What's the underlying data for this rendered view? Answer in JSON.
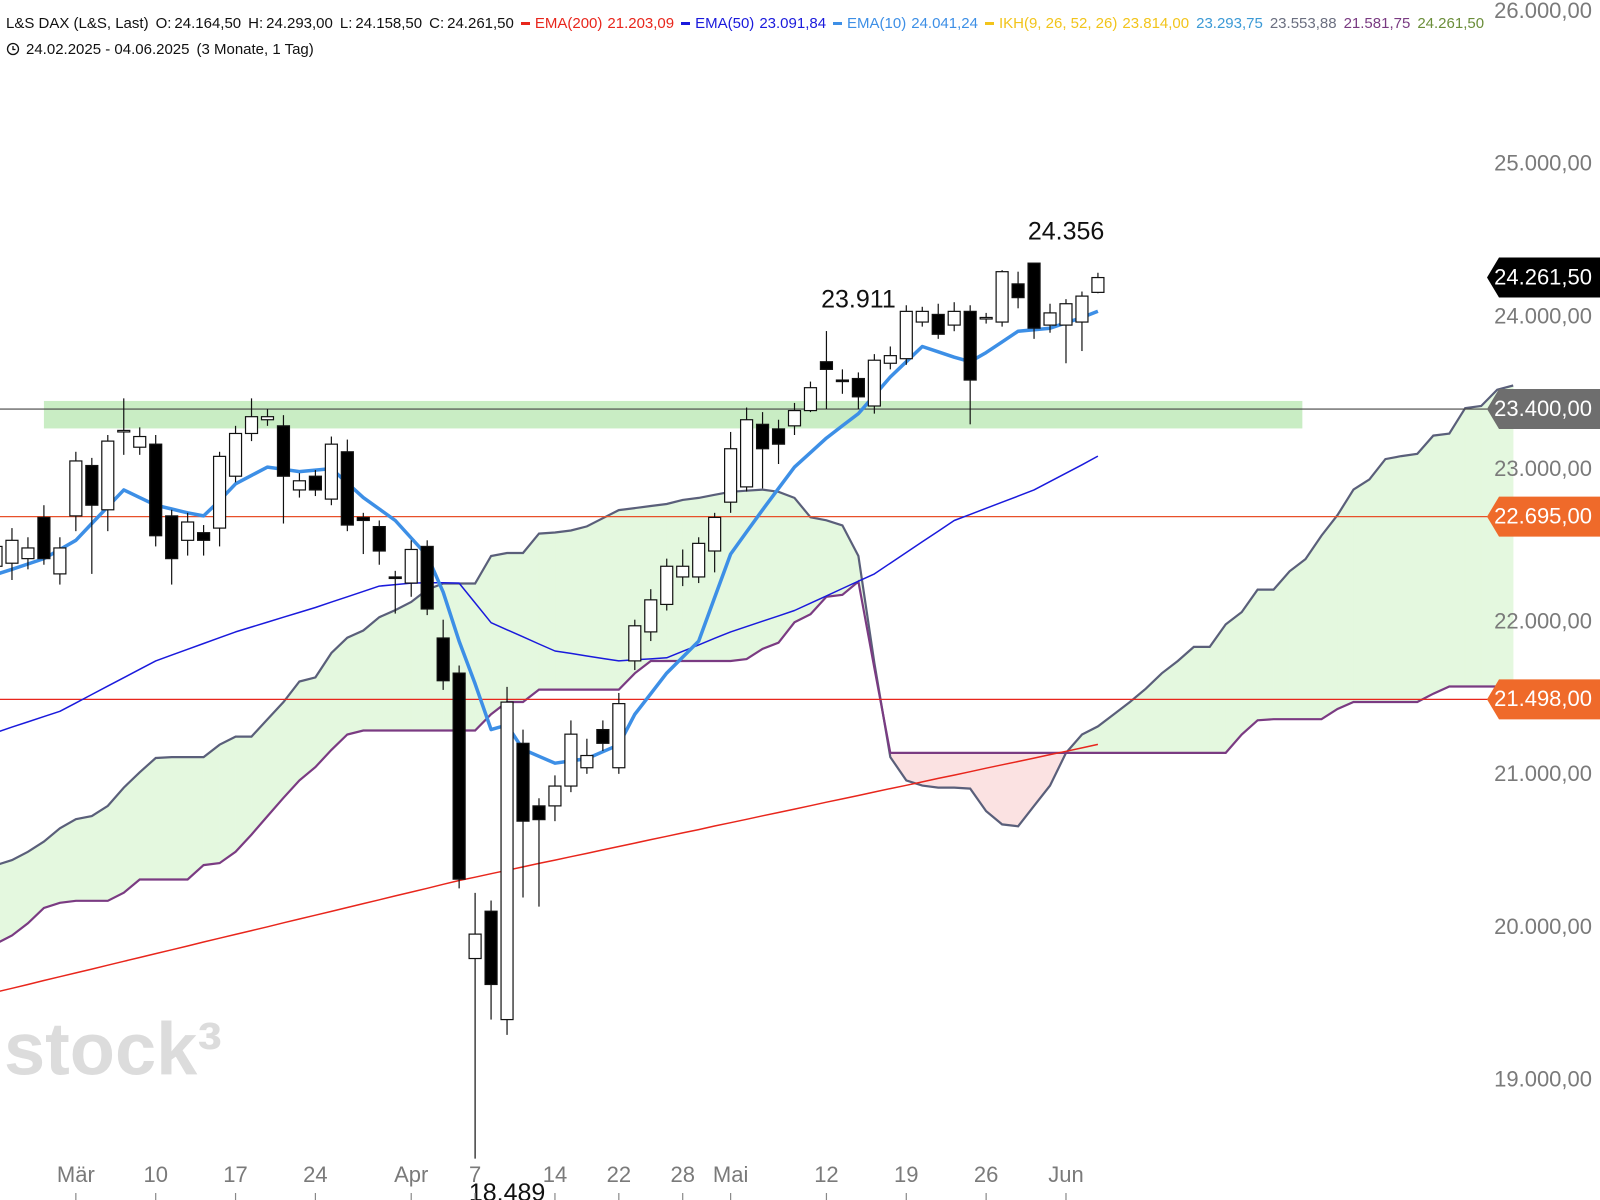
{
  "chart_data": {
    "type": "candlestick",
    "symbol": "L&S DAX (L&S, Last)",
    "ohlc": [
      {
        "label": "O:",
        "text": "24.164,50"
      },
      {
        "label": "H:",
        "text": "24.293,00"
      },
      {
        "label": "L:",
        "text": "24.158,50"
      },
      {
        "label": "C:",
        "text": "24.261,50"
      }
    ],
    "range": "24.02.2025 - 04.06.2025",
    "period": "(3 Monate, 1 Tag)",
    "watermark": "stock³",
    "categories": [
      null,
      null,
      null,
      null,
      null,
      "Mär",
      null,
      null,
      null,
      null,
      "10",
      null,
      null,
      null,
      null,
      "17",
      null,
      null,
      null,
      null,
      "24",
      null,
      null,
      null,
      null,
      null,
      "Apr",
      null,
      null,
      null,
      "7",
      null,
      null,
      null,
      null,
      "14",
      null,
      null,
      null,
      "22",
      null,
      null,
      null,
      "28",
      null,
      null,
      "Mai",
      null,
      null,
      null,
      null,
      null,
      "12",
      null,
      null,
      null,
      null,
      "19",
      null,
      null,
      null,
      null,
      "26",
      null,
      null,
      null,
      null,
      "Jun",
      null,
      null,
      null,
      null,
      null,
      null,
      null,
      null,
      null,
      null,
      null,
      null,
      null,
      null,
      null,
      null,
      null,
      null,
      null,
      null,
      null,
      null,
      null,
      null,
      null,
      null,
      null,
      null
    ],
    "open": [
      22370,
      22390,
      22420,
      22690,
      22320,
      22700,
      23030,
      22740,
      23250,
      23150,
      23170,
      22700,
      22540,
      22590,
      22620,
      22960,
      23240,
      23330,
      23290,
      22870,
      22960,
      22810,
      23120,
      22690,
      22630,
      22300,
      22260,
      22500,
      21900,
      21670,
      19800,
      20110,
      19400,
      21210,
      20800,
      20800,
      20930,
      21050,
      21300,
      21050,
      21750,
      21940,
      22120,
      22300,
      22300,
      22470,
      22790,
      22890,
      23300,
      23270,
      23290,
      23390,
      23710,
      23590,
      23600,
      23420,
      23700,
      23730,
      23970,
      24020,
      23950,
      24040,
      23990,
      23970,
      24220,
      24356,
      23950,
      23950,
      23970,
      24164.5,
      null,
      null,
      null,
      null,
      null,
      null,
      null,
      null,
      null,
      null,
      null,
      null,
      null,
      null,
      null,
      null,
      null,
      null,
      null,
      null,
      null,
      null,
      null,
      null,
      null,
      null
    ],
    "high": [
      22560,
      22620,
      22560,
      22770,
      22560,
      23120,
      23080,
      23230,
      23470,
      23280,
      23230,
      22740,
      22720,
      22640,
      23120,
      23290,
      23470,
      23400,
      23360,
      22980,
      23000,
      23220,
      23200,
      22720,
      22670,
      22340,
      22540,
      22540,
      22020,
      21720,
      20230,
      20180,
      21580,
      21300,
      20850,
      21000,
      21360,
      21240,
      21360,
      21540,
      22020,
      22220,
      22420,
      22480,
      22560,
      22720,
      23250,
      23410,
      23380,
      23330,
      23440,
      23580,
      23911,
      23660,
      23640,
      23760,
      23810,
      24080,
      24070,
      24090,
      24100,
      24080,
      24030,
      24310,
      24300,
      24356,
      24090,
      24120,
      24170,
      24293,
      null,
      null,
      null,
      null,
      null,
      null,
      null,
      null,
      null,
      null,
      null,
      null,
      null,
      null,
      null,
      null,
      null,
      null,
      null,
      null,
      null,
      null,
      null,
      null,
      null,
      null
    ],
    "low": [
      22300,
      22280,
      22350,
      22380,
      22250,
      22600,
      22320,
      22600,
      23100,
      23100,
      22500,
      22250,
      22440,
      22440,
      22500,
      22920,
      23190,
      23290,
      22650,
      22820,
      22830,
      22770,
      22600,
      22450,
      22380,
      22060,
      22170,
      22050,
      21560,
      20260,
      18489,
      19400,
      19300,
      20200,
      20140,
      20700,
      20890,
      21010,
      21160,
      21010,
      21690,
      21880,
      22080,
      22240,
      22260,
      22330,
      22720,
      22860,
      22880,
      23040,
      23230,
      23380,
      23400,
      23500,
      23400,
      23370,
      23660,
      23690,
      23940,
      23860,
      23910,
      23300,
      23960,
      23940,
      24060,
      23860,
      23900,
      23700,
      23780,
      24158.5,
      null,
      null,
      null,
      null,
      null,
      null,
      null,
      null,
      null,
      null,
      null,
      null,
      null,
      null,
      null,
      null,
      null,
      null,
      null,
      null,
      null,
      null,
      null,
      null,
      null,
      null
    ],
    "close": [
      22500,
      22540,
      22490,
      22420,
      22490,
      23060,
      22770,
      23190,
      23260,
      23220,
      22570,
      22420,
      22660,
      22540,
      23090,
      23240,
      23350,
      23350,
      22960,
      22930,
      22870,
      23170,
      22640,
      22670,
      22470,
      22290,
      22480,
      22090,
      21620,
      20320,
      19960,
      19630,
      21480,
      20700,
      20710,
      20930,
      21270,
      21130,
      21210,
      21470,
      21980,
      22150,
      22370,
      22370,
      22520,
      22690,
      23140,
      23330,
      23140,
      23170,
      23390,
      23540,
      23660,
      23580,
      23480,
      23720,
      23750,
      24040,
      24040,
      23890,
      24040,
      23590,
      24000,
      24300,
      24130,
      23930,
      24030,
      24090,
      24140,
      24261.5,
      null,
      null,
      null,
      null,
      null,
      null,
      null,
      null,
      null,
      null,
      null,
      null,
      null,
      null,
      null,
      null,
      null,
      null,
      null,
      null,
      null,
      null,
      null,
      null,
      null,
      null
    ],
    "series": [
      {
        "name": "EMA(200)",
        "color": "#e8261c",
        "width": 1.5,
        "legend_value": "21.203,09",
        "values": [
          19580,
          19605,
          19630,
          19656,
          19681,
          19706,
          19731,
          19756,
          19782,
          19807,
          19832,
          19857,
          19882,
          19908,
          19933,
          19958,
          19983,
          20008,
          20034,
          20059,
          20084,
          20109,
          20134,
          20160,
          20185,
          20210,
          20235,
          20260,
          20286,
          20311,
          20333,
          20356,
          20378,
          20400,
          20423,
          20445,
          20467,
          20489,
          20512,
          20534,
          20556,
          20579,
          20601,
          20623,
          20645,
          20668,
          20690,
          20712,
          20735,
          20757,
          20779,
          20801,
          20824,
          20846,
          20868,
          20891,
          20913,
          20935,
          20957,
          20980,
          21002,
          21024,
          21047,
          21069,
          21091,
          21113,
          21136,
          21158,
          21180,
          21203,
          null,
          null,
          null,
          null,
          null,
          null,
          null,
          null,
          null,
          null,
          null,
          null,
          null,
          null,
          null,
          null,
          null,
          null,
          null,
          null,
          null,
          null,
          null,
          null,
          null,
          null
        ]
      },
      {
        "name": "EMA(50)",
        "color": "#1a1adc",
        "width": 1.5,
        "legend_value": "23.091,84",
        "values": [
          21281,
          21316,
          21350,
          21385,
          21420,
          21475,
          21530,
          21585,
          21640,
          21695,
          21750,
          21788,
          21826,
          21864,
          21902,
          21940,
          21972,
          22004,
          22036,
          22068,
          22100,
          22135,
          22170,
          22205,
          22240,
          22250,
          22260,
          22262,
          22262,
          22260,
          22130,
          22000,
          21954,
          21908,
          21861,
          21815,
          21799,
          21782,
          21766,
          21750,
          21757,
          21763,
          21770,
          21813,
          21855,
          21898,
          21940,
          21975,
          22010,
          22045,
          22080,
          22128,
          22176,
          22224,
          22272,
          22320,
          22390,
          22460,
          22530,
          22600,
          22670,
          22710,
          22750,
          22790,
          22830,
          22870,
          22925,
          22980,
          23035,
          23092,
          null,
          null,
          null,
          null,
          null,
          null,
          null,
          null,
          null,
          null,
          null,
          null,
          null,
          null,
          null,
          null,
          null,
          null,
          null,
          null,
          null,
          null,
          null,
          null,
          null,
          null
        ]
      },
      {
        "name": "EMA(10)",
        "color": "#3d8fe6",
        "width": 3.5,
        "legend_value": "24.041,24",
        "values": [
          22317,
          22350,
          22385,
          22420,
          22480,
          22540,
          22650,
          22760,
          22870,
          22820,
          22770,
          22745,
          22720,
          22700,
          22800,
          22910,
          22965,
          23020,
          23005,
          22990,
          23000,
          23010,
          22915,
          22820,
          22745,
          22670,
          22555,
          22440,
          22200,
          21880,
          21600,
          21300,
          21330,
          21170,
          21125,
          21080,
          21095,
          21110,
          21155,
          21200,
          21400,
          21535,
          21670,
          21775,
          21880,
          22165,
          22450,
          22595,
          22740,
          22880,
          23020,
          23115,
          23210,
          23290,
          23370,
          23490,
          23610,
          23710,
          23810,
          23775,
          23740,
          23710,
          23770,
          23840,
          23910,
          23920,
          23930,
          23965,
          24000,
          24041,
          null,
          null,
          null,
          null,
          null,
          null,
          null,
          null,
          null,
          null,
          null,
          null,
          null,
          null,
          null,
          null,
          null,
          null,
          null,
          null,
          null,
          null,
          null,
          null,
          null,
          null
        ]
      }
    ],
    "ikh": {
      "name": "IKH(9, 26, 52, 26)",
      "color": "#f2c41b",
      "readouts": [
        {
          "text": "23.814,00",
          "color": "#f2c41b"
        },
        {
          "text": "23.293,75",
          "color": "#3c9ad6"
        },
        {
          "text": "23.553,88",
          "color": "#6b6f80"
        },
        {
          "text": "21.581,75",
          "color": "#7a3b82"
        },
        {
          "text": "24.261,50",
          "color": "#6b8e3a"
        }
      ]
    },
    "cloud": {
      "span_a": {
        "color": "#5a5f7a",
        "values": [
          20412,
          20445,
          20499,
          20566,
          20653,
          20713,
          20733,
          20800,
          20920,
          21020,
          21114,
          21120,
          21120,
          21120,
          21201,
          21254,
          21254,
          21368,
          21481,
          21615,
          21642,
          21802,
          21902,
          21949,
          22036,
          22083,
          22136,
          22217,
          22257,
          22257,
          22257,
          22437,
          22457,
          22457,
          22584,
          22591,
          22604,
          22631,
          22685,
          22738,
          22751,
          22765,
          22778,
          22805,
          22818,
          22838,
          22858,
          22865,
          22872,
          22858,
          22818,
          22691,
          22671,
          22638,
          22437,
          21735,
          21120,
          20967,
          20933,
          20920,
          20920,
          20913,
          20766,
          20679,
          20666,
          20800,
          20933,
          21147,
          21268,
          21321,
          21401,
          21481,
          21568,
          21669,
          21749,
          21842,
          21842,
          21989,
          22070,
          22217,
          22217,
          22337,
          22417,
          22571,
          22705,
          22872,
          22939,
          23072,
          23092,
          23106,
          23226,
          23239,
          23406,
          23420,
          23527,
          23554
        ]
      },
      "span_b": {
        "color": "#7a3b82",
        "values": [
          19897,
          19951,
          20031,
          20131,
          20165,
          20178,
          20178,
          20178,
          20231,
          20318,
          20318,
          20318,
          20318,
          20412,
          20425,
          20499,
          20612,
          20733,
          20853,
          20967,
          21054,
          21167,
          21268,
          21294,
          21294,
          21294,
          21294,
          21294,
          21294,
          21294,
          21294,
          21401,
          21481,
          21481,
          21562,
          21562,
          21562,
          21562,
          21562,
          21562,
          21669,
          21749,
          21749,
          21749,
          21749,
          21749,
          21749,
          21762,
          21829,
          21869,
          22003,
          22056,
          22170,
          22183,
          22270,
          21702,
          21147,
          21147,
          21147,
          21147,
          21147,
          21147,
          21147,
          21147,
          21147,
          21147,
          21147,
          21147,
          21147,
          21147,
          21147,
          21147,
          21147,
          21147,
          21147,
          21147,
          21147,
          21147,
          21268,
          21361,
          21368,
          21368,
          21368,
          21368,
          21435,
          21481,
          21481,
          21481,
          21481,
          21481,
          21535,
          21582,
          21582,
          21582,
          21582,
          21582
        ]
      },
      "up_fill": "#e4f8df",
      "down_fill": "#fbe2e2"
    },
    "zone": {
      "from": 23273,
      "to": 23453,
      "color": "#c9edc4"
    },
    "price_lines": [
      {
        "value": 24261.5,
        "label": "24.261,50",
        "color": "#000000",
        "line": false
      },
      {
        "value": 23400,
        "label": "23.400,00",
        "color": "#6e6e6e",
        "line": true,
        "line_color": "#444444"
      },
      {
        "value": 22695,
        "label": "22.695,00",
        "color": "#ef6a2a",
        "line": true,
        "line_color": "#e8502a"
      },
      {
        "value": 21498,
        "label": "21.498,00",
        "color": "#ef6a2a",
        "line": true,
        "line_color": "#e8261c"
      }
    ],
    "annotations": [
      {
        "text": "24.356",
        "value": 24356,
        "at": "high"
      },
      {
        "text": "23.911",
        "value": 23911,
        "at": "high"
      },
      {
        "text": "18.489",
        "value": 18489,
        "at": "low"
      }
    ],
    "ylim": [
      18480,
      26080
    ],
    "yticks": [
      {
        "value": 19000,
        "label": "19.000,00"
      },
      {
        "value": 20000,
        "label": "20.000,00"
      },
      {
        "value": 21000,
        "label": "21.000,00"
      },
      {
        "value": 22000,
        "label": "22.000,00"
      },
      {
        "value": 23000,
        "label": "23.000,00"
      },
      {
        "value": 24000,
        "label": "24.000,00"
      },
      {
        "value": 25000,
        "label": "25.000,00"
      },
      {
        "value": 26000,
        "label": "26.000,00"
      }
    ],
    "grid": false
  }
}
